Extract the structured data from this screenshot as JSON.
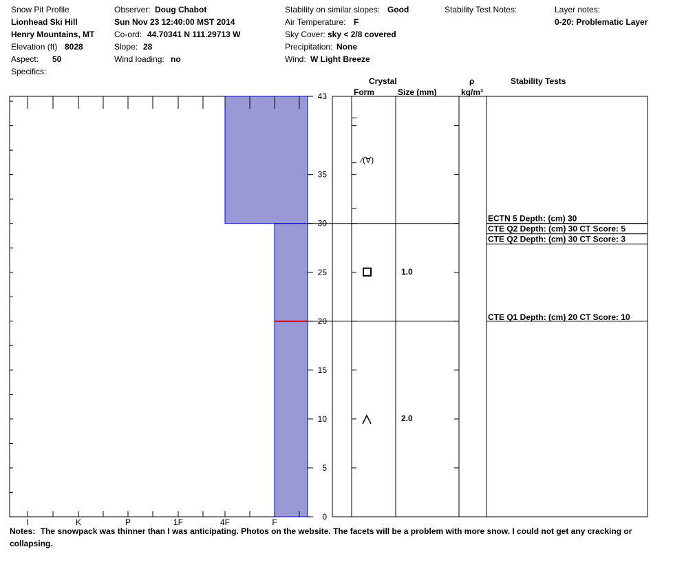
{
  "header": {
    "col1": {
      "title": "Snow Pit Profile",
      "location": "Lionhead Ski Hill",
      "range": "Henry Mountains, MT",
      "elevation_label": "Elevation (ft)",
      "elevation_value": "8028",
      "aspect_label": "Aspect:",
      "aspect_value": "50",
      "specifics_label": "Specifics:"
    },
    "col2": {
      "observer_label": "Observer:",
      "observer_value": "Doug Chabot",
      "datetime": "Sun Nov 23 12:40:00 MST 2014",
      "coord_label": "Co-ord:",
      "coord_value": "44.70341 N 111.29713 W",
      "slope_label": "Slope:",
      "slope_value": "28",
      "wind_loading_label": "Wind loading:",
      "wind_loading_value": "no"
    },
    "col3": {
      "stability_label": "Stability on similar slopes:",
      "stability_value": "Good",
      "air_temp_label": "Air Temperature:",
      "air_temp_value": "F",
      "sky_label": "Sky Cover:",
      "sky_value": "sky < 2/8 covered",
      "precip_label": "Precipitation:",
      "precip_value": "None",
      "wind_label": "Wind:",
      "wind_value": "W Light Breeze"
    },
    "col4": {
      "stability_test_notes_label": "Stability Test Notes:"
    },
    "col5": {
      "layer_notes_label": "Layer notes:",
      "layer_notes_value": "0-20: Problematic Layer"
    }
  },
  "columns": {
    "crystal": "Crystal",
    "form": "Form",
    "size": "Size (mm)",
    "rho": "ρ",
    "density_unit": "kg/m³",
    "stability_tests": "Stability Tests"
  },
  "notes": {
    "label": "Notes:",
    "text": "The snowpack was thinner than I was anticipating.  Photos on the website. The facets will be a problem with more snow.  I could not get any cracking or collapsing."
  },
  "chart_data": {
    "type": "bar",
    "depth_range": [
      0,
      43
    ],
    "depth_ticks": [
      0,
      5,
      10,
      15,
      20,
      25,
      30,
      35,
      43
    ],
    "hardness_scale": [
      "I",
      "K",
      "P",
      "1F",
      "4F",
      "F"
    ],
    "hardness_layers": [
      {
        "bottom": 30,
        "top": 43,
        "hardness": "4F"
      },
      {
        "bottom": 0,
        "top": 30,
        "hardness": "F"
      }
    ],
    "layer_boundaries": [
      30,
      20
    ],
    "problematic_marker_depth": 20,
    "crystals": [
      {
        "depth": 36.5,
        "form": "facet-rounding",
        "form_text": "∕(∀)",
        "size": ""
      },
      {
        "depth": 25,
        "form": "faceted",
        "form_text": "",
        "size": "1.0"
      },
      {
        "depth": 10,
        "form": "depth-hoar",
        "form_text": "",
        "size": "2.0"
      }
    ],
    "stability_tests": [
      {
        "depth": 30,
        "text": "ECTN 5   Depth: (cm) 30"
      },
      {
        "depth": 30,
        "text": "CTE Q2 Depth: (cm) 30 CT Score: 5"
      },
      {
        "depth": 30,
        "text": "CTE Q2 Depth: (cm) 30 CT Score: 3"
      },
      {
        "depth": 20,
        "text": "CTE Q1 Depth: (cm) 20 CT Score: 10"
      }
    ],
    "colors": {
      "layer_fill": "#9999d6",
      "layer_stroke": "#0000cc",
      "marker": "#e00000"
    }
  }
}
